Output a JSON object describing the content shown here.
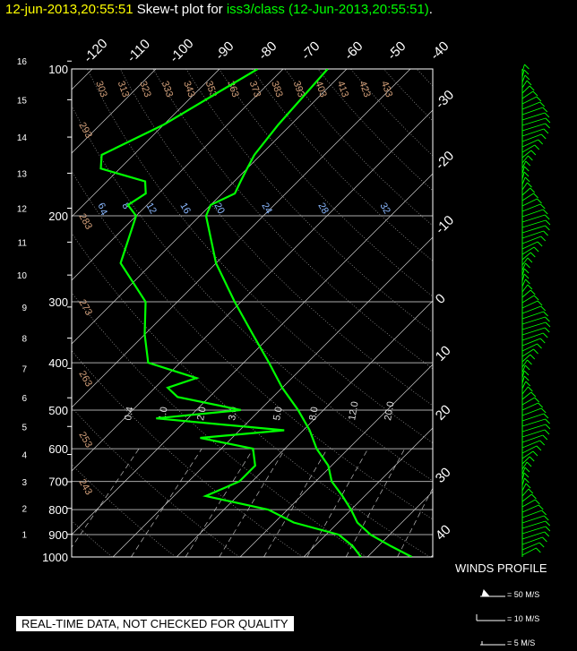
{
  "title": {
    "datetime": "12-jun-2013,20:55:51",
    "middle": "  Skew-t plot for ",
    "station": "iss3/class (12-Jun-2013,20:55:51)",
    "period": "."
  },
  "disclaimer": "REAL-TIME DATA, NOT CHECKED FOR QUALITY",
  "winds": {
    "label": "WINDS PROFILE",
    "legend": [
      "= 50 M/S",
      "= 10 M/S",
      "= 5 M/S"
    ]
  },
  "colors": {
    "trace": "#00ff00",
    "grid": "#ffffff",
    "dry_adiabat_label": "#d4a07a",
    "mixing_label": "#8ab8ff",
    "title_date": "#ffff00",
    "title_station": "#00ff00"
  },
  "chart_data": {
    "type": "line",
    "diagram": "skew-t log-p",
    "pressure_levels_hPa": [
      100,
      200,
      300,
      400,
      500,
      600,
      700,
      800,
      900,
      1000
    ],
    "height_ticks_km": [
      1,
      2,
      3,
      4,
      5,
      6,
      7,
      8,
      9,
      10,
      11,
      12,
      13,
      14,
      15,
      16
    ],
    "temp_top_labels": [
      "-120",
      "-110",
      "-100",
      "-90",
      "-80",
      "-70",
      "-60",
      "-50",
      "-40"
    ],
    "temp_right_labels": [
      "-30",
      "-20",
      "-10",
      "0",
      "10",
      "20",
      "30",
      "40"
    ],
    "dry_adiabat_labels": [
      "243",
      "253",
      "263",
      "273",
      "283",
      "293",
      "303",
      "313",
      "323",
      "333",
      "343",
      "353",
      "363",
      "373",
      "383",
      "393",
      "403",
      "413",
      "423",
      "433"
    ],
    "mixing_ratio_labels": [
      "4",
      "6",
      "8",
      "12",
      "16",
      "20",
      "24",
      "28",
      "32"
    ],
    "moist_labels": [
      "0.4",
      "1.0",
      "2.0",
      "3.0",
      "5.0",
      "8.0",
      "12.0",
      "20.0"
    ],
    "series": [
      {
        "pressure": [
          1000,
          950,
          900,
          850,
          800,
          750,
          700,
          650,
          600,
          550,
          500,
          450,
          400,
          350,
          300,
          250,
          200,
          190,
          180,
          170,
          160,
          150,
          130,
          100
        ],
        "values": [
          27,
          22,
          17,
          13,
          10,
          6.5,
          2.5,
          -0.5,
          -5,
          -9,
          -14,
          -20,
          -26,
          -33,
          -41,
          -50,
          -59,
          -60,
          -58,
          -59,
          -60,
          -61,
          -62,
          -63
        ]
      },
      {
        "pressure": [
          1000,
          950,
          900,
          850,
          800,
          750,
          700,
          650,
          600,
          570,
          550,
          520,
          500,
          470,
          450,
          430,
          400,
          350,
          300,
          250,
          200,
          190,
          180,
          170,
          160,
          150,
          130,
          100
        ],
        "values": [
          19,
          16,
          12,
          3,
          -3,
          -15,
          -12,
          -12,
          -15,
          -25,
          -13,
          -35,
          -23,
          -35,
          -38,
          -35,
          -45,
          -50,
          -55,
          -65,
          -70,
          -73,
          -72,
          -74,
          -83,
          -85,
          -80,
          -74
        ]
      }
    ]
  }
}
